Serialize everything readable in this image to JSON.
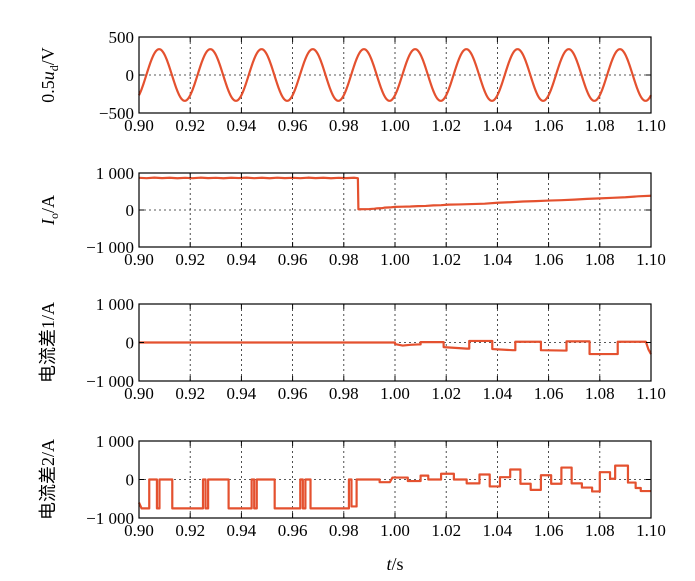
{
  "figure": {
    "xlabel_italic": "t",
    "xlabel_unit": "/s",
    "trace_color": "#e4512f",
    "axis_color": "#000000",
    "grid": "dashed"
  },
  "chart_data": [
    {
      "type": "line",
      "id": "ud",
      "ylabel": {
        "pre": "0.5",
        "italic": "u",
        "sub": "d",
        "post": "/V"
      },
      "xlim": [
        0.9,
        1.1
      ],
      "ylim": [
        -500,
        500
      ],
      "yticks": [
        -500,
        0,
        500
      ],
      "ytick_labels": [
        "−500",
        "0",
        "500"
      ],
      "xticks": [
        0.9,
        0.92,
        0.94,
        0.96,
        0.98,
        1.0,
        1.02,
        1.04,
        1.06,
        1.08,
        1.1
      ],
      "xtick_labels": [
        "0.90",
        "0.92",
        "0.94",
        "0.96",
        "0.98",
        "1.00",
        "1.02",
        "1.04",
        "1.06",
        "1.08",
        "1.10"
      ],
      "series": [
        {
          "kind": "sine",
          "amplitude": 340,
          "frequency_hz": 50,
          "phase_rad": -0.9
        }
      ]
    },
    {
      "type": "line",
      "id": "io",
      "ylabel": {
        "pre": "",
        "italic": "I",
        "sub": "o",
        "post": "/A"
      },
      "xlim": [
        0.9,
        1.1
      ],
      "ylim": [
        -1000,
        1000
      ],
      "yticks": [
        -1000,
        0,
        1000
      ],
      "ytick_labels": [
        "−1 000",
        "0",
        "1 000"
      ],
      "xticks": [
        0.9,
        0.92,
        0.94,
        0.96,
        0.98,
        1.0,
        1.02,
        1.04,
        1.06,
        1.08,
        1.1
      ],
      "xtick_labels": [
        "0.90",
        "0.92",
        "0.94",
        "0.96",
        "0.98",
        "1.00",
        "1.02",
        "1.04",
        "1.06",
        "1.08",
        "1.10"
      ],
      "series": [
        {
          "kind": "points",
          "points": [
            [
              0.9,
              870
            ],
            [
              0.903,
              860
            ],
            [
              0.906,
              875
            ],
            [
              0.909,
              862
            ],
            [
              0.912,
              872
            ],
            [
              0.915,
              858
            ],
            [
              0.918,
              870
            ],
            [
              0.921,
              860
            ],
            [
              0.924,
              874
            ],
            [
              0.927,
              861
            ],
            [
              0.93,
              870
            ],
            [
              0.933,
              858
            ],
            [
              0.936,
              872
            ],
            [
              0.939,
              863
            ],
            [
              0.942,
              875
            ],
            [
              0.945,
              860
            ],
            [
              0.948,
              871
            ],
            [
              0.951,
              859
            ],
            [
              0.954,
              873
            ],
            [
              0.957,
              862
            ],
            [
              0.96,
              870
            ],
            [
              0.963,
              860
            ],
            [
              0.966,
              874
            ],
            [
              0.969,
              861
            ],
            [
              0.972,
              872
            ],
            [
              0.975,
              859
            ],
            [
              0.978,
              870
            ],
            [
              0.981,
              862
            ],
            [
              0.984,
              872
            ],
            [
              0.9855,
              860
            ],
            [
              0.9857,
              20
            ],
            [
              0.99,
              25
            ],
            [
              0.992,
              35
            ],
            [
              0.993,
              45
            ],
            [
              0.995,
              50
            ],
            [
              0.996,
              65
            ],
            [
              0.998,
              70
            ],
            [
              1.0,
              85
            ],
            [
              1.003,
              90
            ],
            [
              1.006,
              95
            ],
            [
              1.009,
              105
            ],
            [
              1.012,
              110
            ],
            [
              1.015,
              125
            ],
            [
              1.018,
              130
            ],
            [
              1.021,
              145
            ],
            [
              1.025,
              150
            ],
            [
              1.03,
              160
            ],
            [
              1.035,
              170
            ],
            [
              1.04,
              195
            ],
            [
              1.045,
              210
            ],
            [
              1.05,
              230
            ],
            [
              1.055,
              240
            ],
            [
              1.06,
              255
            ],
            [
              1.065,
              265
            ],
            [
              1.07,
              280
            ],
            [
              1.075,
              300
            ],
            [
              1.08,
              315
            ],
            [
              1.085,
              330
            ],
            [
              1.09,
              345
            ],
            [
              1.095,
              370
            ],
            [
              1.1,
              385
            ]
          ]
        }
      ]
    },
    {
      "type": "line",
      "id": "diff1",
      "ylabel": {
        "pre": "",
        "italic": "",
        "sub": "",
        "post": "电流差1/A"
      },
      "xlim": [
        0.9,
        1.1
      ],
      "ylim": [
        -1000,
        1000
      ],
      "yticks": [
        -1000,
        0,
        1000
      ],
      "ytick_labels": [
        "−1 000",
        "0",
        "1 000"
      ],
      "xticks": [
        0.9,
        0.92,
        0.94,
        0.96,
        0.98,
        1.0,
        1.02,
        1.04,
        1.06,
        1.08,
        1.1
      ],
      "xtick_labels": [
        "0.90",
        "0.92",
        "0.94",
        "0.96",
        "0.98",
        "1.00",
        "1.02",
        "1.04",
        "1.06",
        "1.08",
        "1.10"
      ],
      "series": [
        {
          "kind": "step",
          "points": [
            [
              0.9,
              0
            ],
            [
              1.0,
              0
            ],
            [
              1.0,
              -40
            ],
            [
              1.003,
              -80
            ],
            [
              1.006,
              -60
            ],
            [
              1.009,
              -50
            ],
            [
              1.01,
              -50
            ],
            [
              1.01,
              10
            ],
            [
              1.019,
              10
            ],
            [
              1.019,
              -120
            ],
            [
              1.028,
              -160
            ],
            [
              1.029,
              -160
            ],
            [
              1.029,
              40
            ],
            [
              1.038,
              40
            ],
            [
              1.038,
              -170
            ],
            [
              1.046,
              -200
            ],
            [
              1.047,
              -200
            ],
            [
              1.047,
              20
            ],
            [
              1.057,
              20
            ],
            [
              1.057,
              -200
            ],
            [
              1.066,
              -210
            ],
            [
              1.067,
              -210
            ],
            [
              1.067,
              30
            ],
            [
              1.076,
              30
            ],
            [
              1.076,
              -300
            ],
            [
              1.086,
              -300
            ],
            [
              1.087,
              -300
            ],
            [
              1.087,
              20
            ],
            [
              1.098,
              20
            ],
            [
              1.099,
              -180
            ],
            [
              1.1,
              -300
            ]
          ]
        }
      ]
    },
    {
      "type": "line",
      "id": "diff2",
      "ylabel": {
        "pre": "",
        "italic": "",
        "sub": "",
        "post": "电流差2/A"
      },
      "xlim": [
        0.9,
        1.1
      ],
      "ylim": [
        -1000,
        1000
      ],
      "yticks": [
        -1000,
        0,
        1000
      ],
      "ytick_labels": [
        "−1 000",
        "0",
        "1 000"
      ],
      "xticks": [
        0.9,
        0.92,
        0.94,
        0.96,
        0.98,
        1.0,
        1.02,
        1.04,
        1.06,
        1.08,
        1.1
      ],
      "xtick_labels": [
        "0.90",
        "0.92",
        "0.94",
        "0.96",
        "0.98",
        "1.00",
        "1.02",
        "1.04",
        "1.06",
        "1.08",
        "1.10"
      ],
      "series": [
        {
          "kind": "step",
          "points": [
            [
              0.9,
              -600
            ],
            [
              0.901,
              -750
            ],
            [
              0.904,
              -750
            ],
            [
              0.904,
              0
            ],
            [
              0.907,
              0
            ],
            [
              0.907,
              -750
            ],
            [
              0.908,
              -750
            ],
            [
              0.908,
              0
            ],
            [
              0.913,
              0
            ],
            [
              0.913,
              -750
            ],
            [
              0.922,
              -750
            ],
            [
              0.925,
              -750
            ],
            [
              0.925,
              0
            ],
            [
              0.926,
              0
            ],
            [
              0.926,
              -750
            ],
            [
              0.927,
              -750
            ],
            [
              0.927,
              0
            ],
            [
              0.935,
              0
            ],
            [
              0.935,
              -750
            ],
            [
              0.94,
              -750
            ],
            [
              0.944,
              -750
            ],
            [
              0.944,
              0
            ],
            [
              0.945,
              0
            ],
            [
              0.945,
              -750
            ],
            [
              0.946,
              -750
            ],
            [
              0.946,
              0
            ],
            [
              0.953,
              0
            ],
            [
              0.953,
              -750
            ],
            [
              0.962,
              -750
            ],
            [
              0.963,
              -750
            ],
            [
              0.963,
              0
            ],
            [
              0.964,
              0
            ],
            [
              0.964,
              -750
            ],
            [
              0.965,
              -750
            ],
            [
              0.965,
              0
            ],
            [
              0.967,
              0
            ],
            [
              0.967,
              -750
            ],
            [
              0.976,
              -750
            ],
            [
              0.982,
              -750
            ],
            [
              0.982,
              0
            ],
            [
              0.983,
              0
            ],
            [
              0.983,
              -700
            ],
            [
              0.985,
              -700
            ],
            [
              0.985,
              0
            ],
            [
              0.994,
              0
            ],
            [
              0.994,
              -70
            ],
            [
              0.998,
              -70
            ],
            [
              0.999,
              50
            ],
            [
              1.005,
              50
            ],
            [
              1.005,
              -40
            ],
            [
              1.01,
              -40
            ],
            [
              1.01,
              100
            ],
            [
              1.013,
              100
            ],
            [
              1.013,
              0
            ],
            [
              1.018,
              0
            ],
            [
              1.018,
              150
            ],
            [
              1.023,
              150
            ],
            [
              1.023,
              0
            ],
            [
              1.028,
              0
            ],
            [
              1.028,
              -100
            ],
            [
              1.033,
              -100
            ],
            [
              1.033,
              130
            ],
            [
              1.037,
              130
            ],
            [
              1.037,
              -180
            ],
            [
              1.041,
              -180
            ],
            [
              1.041,
              60
            ],
            [
              1.045,
              60
            ],
            [
              1.045,
              260
            ],
            [
              1.049,
              260
            ],
            [
              1.049,
              -110
            ],
            [
              1.053,
              -110
            ],
            [
              1.053,
              -270
            ],
            [
              1.057,
              -270
            ],
            [
              1.057,
              110
            ],
            [
              1.061,
              110
            ],
            [
              1.061,
              -110
            ],
            [
              1.065,
              -110
            ],
            [
              1.065,
              310
            ],
            [
              1.069,
              310
            ],
            [
              1.069,
              -100
            ],
            [
              1.073,
              -100
            ],
            [
              1.073,
              -210
            ],
            [
              1.077,
              -210
            ],
            [
              1.077,
              -310
            ],
            [
              1.08,
              -310
            ],
            [
              1.08,
              190
            ],
            [
              1.084,
              190
            ],
            [
              1.084,
              20
            ],
            [
              1.086,
              20
            ],
            [
              1.086,
              360
            ],
            [
              1.091,
              360
            ],
            [
              1.091,
              -80
            ],
            [
              1.094,
              -80
            ],
            [
              1.094,
              -220
            ],
            [
              1.096,
              -220
            ],
            [
              1.096,
              -300
            ],
            [
              1.1,
              -300
            ]
          ]
        }
      ]
    }
  ]
}
